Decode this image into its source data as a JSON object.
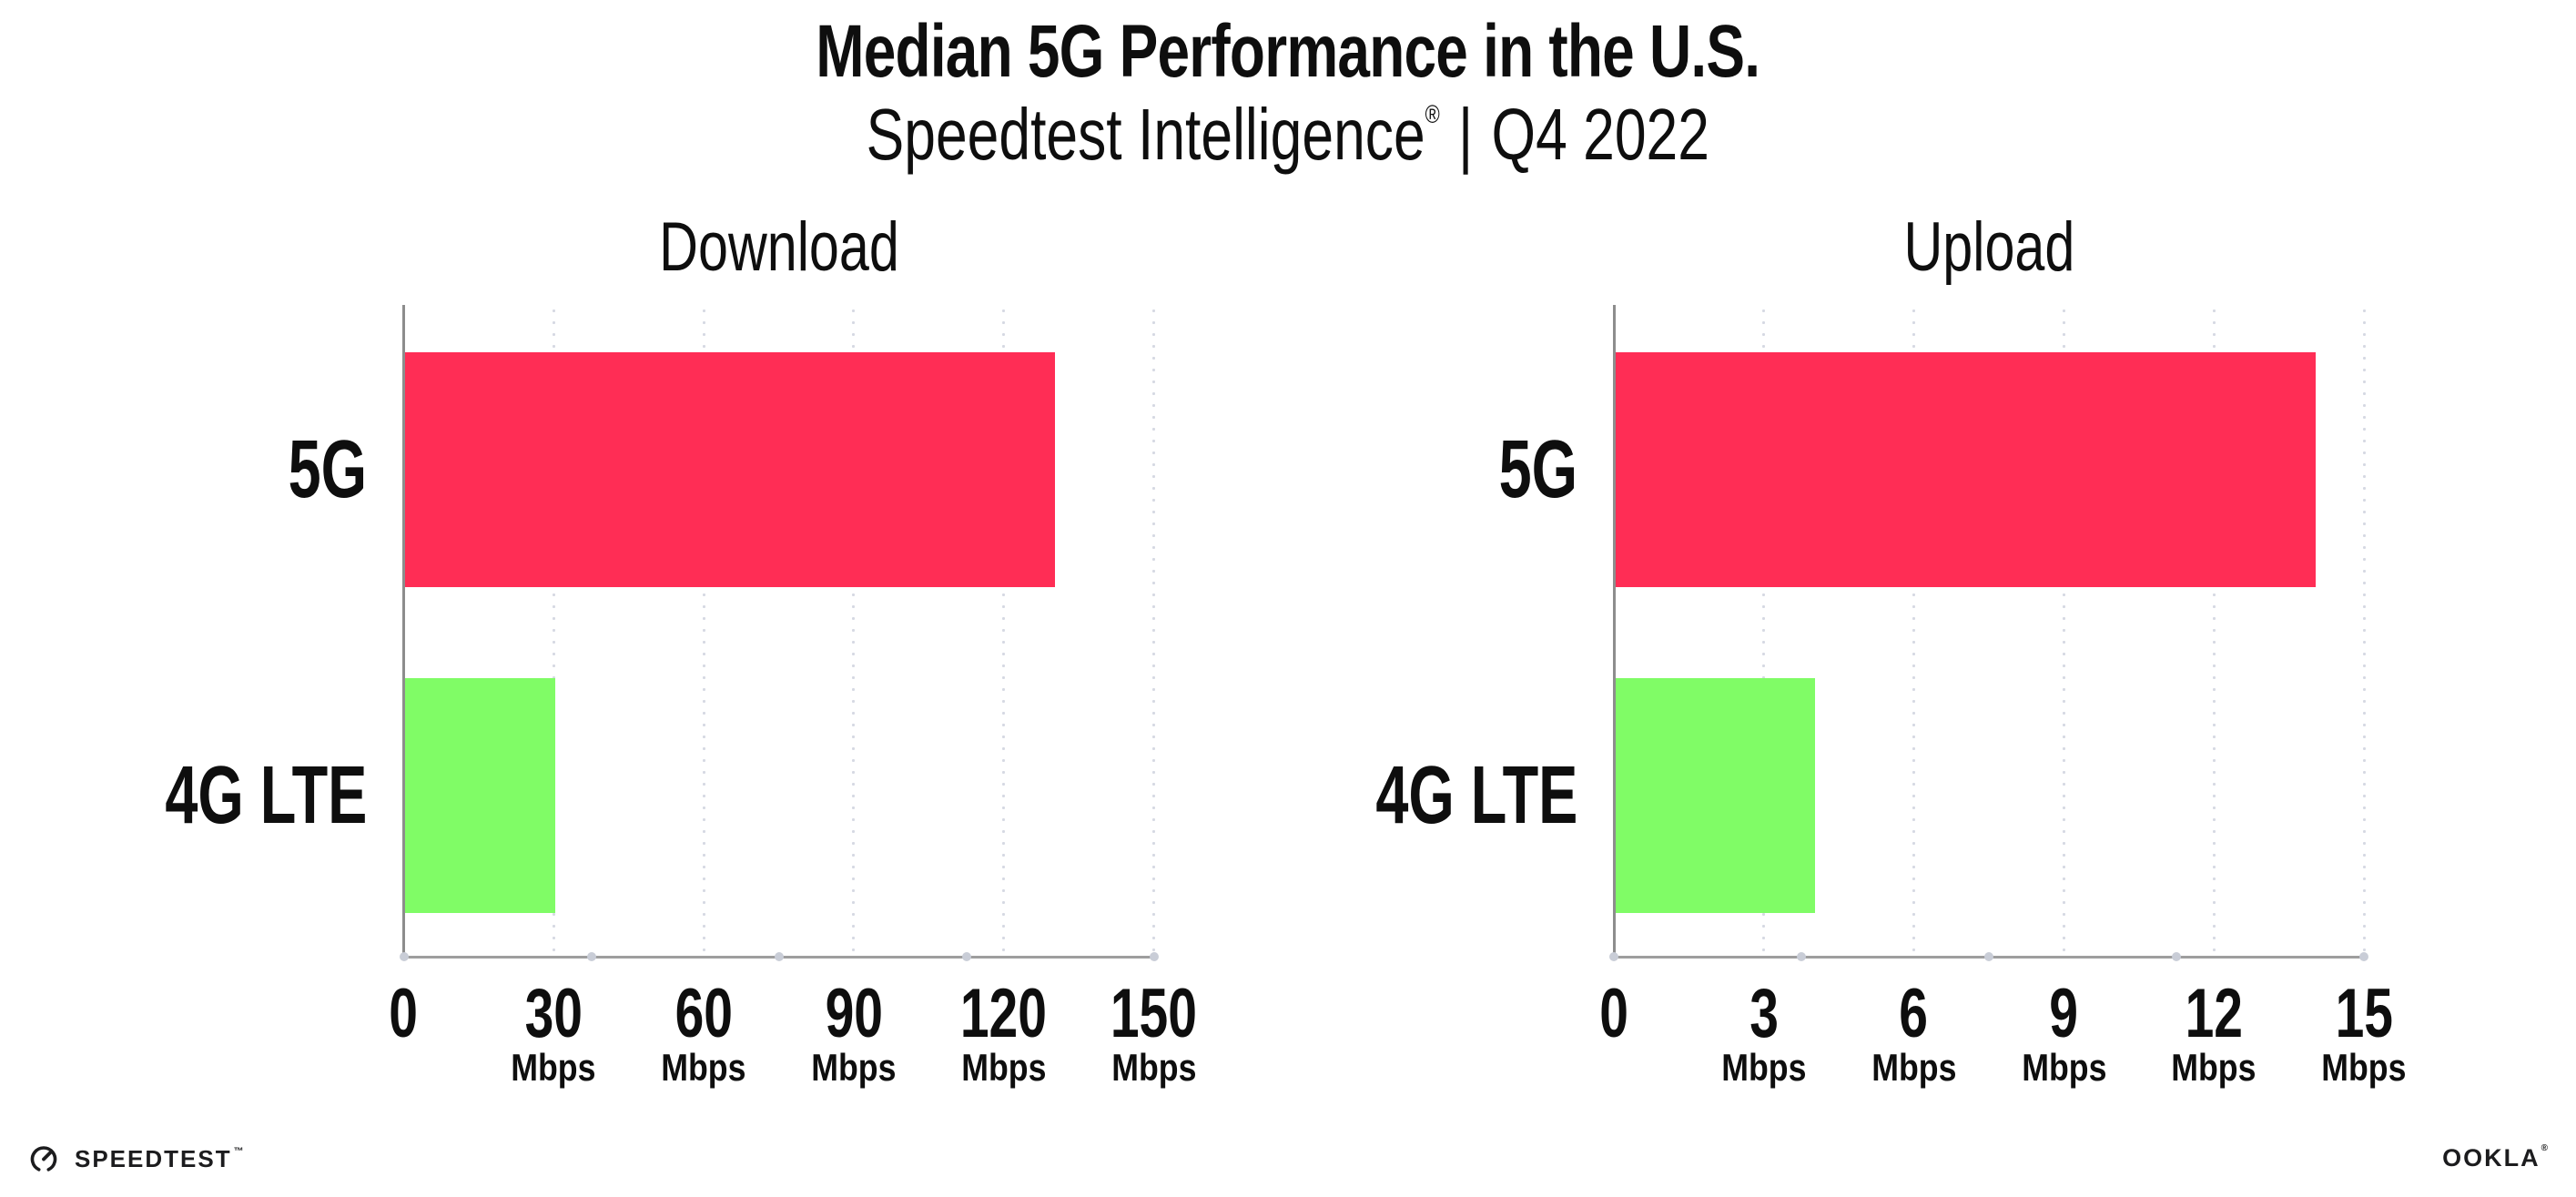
{
  "page": {
    "background": "#ffffff"
  },
  "header": {
    "title": "Median 5G Performance in the U.S.",
    "subtitle": {
      "product": "Speedtest Intelligence",
      "registered_mark": "®",
      "separator": "|",
      "period": "Q4 2022"
    }
  },
  "chart_data": [
    {
      "type": "bar",
      "orientation": "horizontal",
      "title": "Download",
      "categories": [
        "5G",
        "4G LTE"
      ],
      "values": [
        130,
        30
      ],
      "unit": "Mbps",
      "xlim": [
        0,
        150
      ],
      "xticks": [
        0,
        30,
        60,
        90,
        120,
        150
      ],
      "tick_unit_shown_on_zero": false,
      "series_colors": [
        "#FF2D55",
        "#80FC66"
      ],
      "grid": "dotted vertical gridlines at each tick",
      "legend_position": "none"
    },
    {
      "type": "bar",
      "orientation": "horizontal",
      "title": "Upload",
      "categories": [
        "5G",
        "4G LTE"
      ],
      "values": [
        14,
        4
      ],
      "unit": "Mbps",
      "xlim": [
        0,
        15
      ],
      "xticks": [
        0,
        3,
        6,
        9,
        12,
        15
      ],
      "tick_unit_shown_on_zero": false,
      "series_colors": [
        "#FF2D55",
        "#80FC66"
      ],
      "grid": "dotted vertical gridlines at each tick",
      "legend_position": "none"
    }
  ],
  "footer": {
    "speedtest_wordmark": "SPEEDTEST",
    "speedtest_trademark": "™",
    "ookla_wordmark": "OOKLA",
    "ookla_registered": "®"
  },
  "colors": {
    "bar_5g": "#FF2D55",
    "bar_4g_lte": "#80FC66",
    "gridline_dot": "#D6D9E3",
    "x_axis": "#9E9E9E",
    "y_axis": "#8D8D8D",
    "axis_end_dot": "#C9CDD7",
    "text": "#0E0E0E"
  }
}
